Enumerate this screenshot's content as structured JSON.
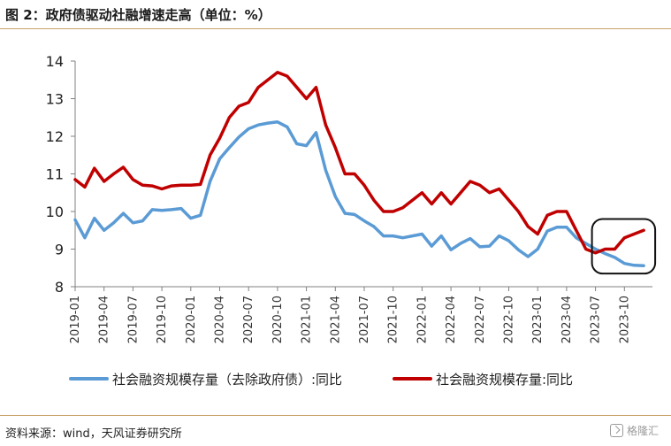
{
  "figure": {
    "title": "图 2：政府债驱动社融增速走高（单位：%）",
    "source": "资料来源：wind，天风证券研究所",
    "watermark": "格隆汇",
    "colors": {
      "accent_rule": "#c9a26a"
    }
  },
  "chart_data": {
    "type": "line",
    "title": "",
    "xlabel": "",
    "ylabel": "",
    "ylim": [
      8,
      14
    ],
    "yticks": [
      "8",
      "9",
      "10",
      "11",
      "12",
      "13",
      "14"
    ],
    "xtick_labels": [
      "2019-01",
      "2019-04",
      "2019-07",
      "2019-10",
      "2020-01",
      "2020-04",
      "2020-07",
      "2020-10",
      "2021-01",
      "2021-04",
      "2021-07",
      "2021-10",
      "2022-01",
      "2022-04",
      "2022-07",
      "2022-10",
      "2023-01",
      "2023-04",
      "2023-07",
      "2023-10"
    ],
    "x": [
      "2019-01",
      "2019-02",
      "2019-03",
      "2019-04",
      "2019-05",
      "2019-06",
      "2019-07",
      "2019-08",
      "2019-09",
      "2019-10",
      "2019-11",
      "2019-12",
      "2020-01",
      "2020-02",
      "2020-03",
      "2020-04",
      "2020-05",
      "2020-06",
      "2020-07",
      "2020-08",
      "2020-09",
      "2020-10",
      "2020-11",
      "2020-12",
      "2021-01",
      "2021-02",
      "2021-03",
      "2021-04",
      "2021-05",
      "2021-06",
      "2021-07",
      "2021-08",
      "2021-09",
      "2021-10",
      "2021-11",
      "2021-12",
      "2022-01",
      "2022-02",
      "2022-03",
      "2022-04",
      "2022-05",
      "2022-06",
      "2022-07",
      "2022-08",
      "2022-09",
      "2022-10",
      "2022-11",
      "2022-12",
      "2023-01",
      "2023-02",
      "2023-03",
      "2023-04",
      "2023-05",
      "2023-06",
      "2023-07",
      "2023-08",
      "2023-09",
      "2023-10",
      "2023-11",
      "2023-12"
    ],
    "series": [
      {
        "name": "社会融资规模存量（去除政府债）:同比",
        "color": "#5b9bd5",
        "values": [
          9.78,
          9.3,
          9.82,
          9.5,
          9.7,
          9.95,
          9.7,
          9.75,
          10.05,
          10.03,
          10.05,
          10.08,
          9.82,
          9.9,
          10.8,
          11.4,
          11.7,
          11.98,
          12.2,
          12.3,
          12.35,
          12.38,
          12.25,
          11.8,
          11.75,
          12.1,
          11.1,
          10.4,
          9.95,
          9.92,
          9.75,
          9.6,
          9.35,
          9.35,
          9.3,
          9.35,
          9.4,
          9.08,
          9.35,
          8.98,
          9.15,
          9.28,
          9.06,
          9.08,
          9.35,
          9.22,
          8.98,
          8.8,
          9.0,
          9.48,
          9.58,
          9.58,
          9.3,
          9.15,
          9.0,
          8.88,
          8.78,
          8.62,
          8.57,
          8.56
        ]
      },
      {
        "name": "社会融资规模存量:同比",
        "color": "#c00000",
        "values": [
          10.85,
          10.65,
          11.15,
          10.8,
          11.0,
          11.18,
          10.85,
          10.7,
          10.68,
          10.6,
          10.68,
          10.7,
          10.7,
          10.72,
          11.5,
          11.95,
          12.5,
          12.8,
          12.9,
          13.3,
          13.5,
          13.7,
          13.6,
          13.3,
          13.0,
          13.3,
          12.3,
          11.7,
          11.0,
          11.0,
          10.7,
          10.3,
          10.0,
          10.0,
          10.1,
          10.3,
          10.5,
          10.2,
          10.5,
          10.2,
          10.5,
          10.8,
          10.7,
          10.5,
          10.6,
          10.3,
          10.0,
          9.6,
          9.4,
          9.9,
          10.0,
          10.0,
          9.5,
          9.0,
          8.9,
          9.0,
          9.0,
          9.3,
          9.4,
          9.5
        ]
      }
    ],
    "highlight": {
      "from": "2023-07",
      "to": "2023-12",
      "shape": "rounded-rectangle"
    },
    "grid": false,
    "legend": "bottom"
  }
}
